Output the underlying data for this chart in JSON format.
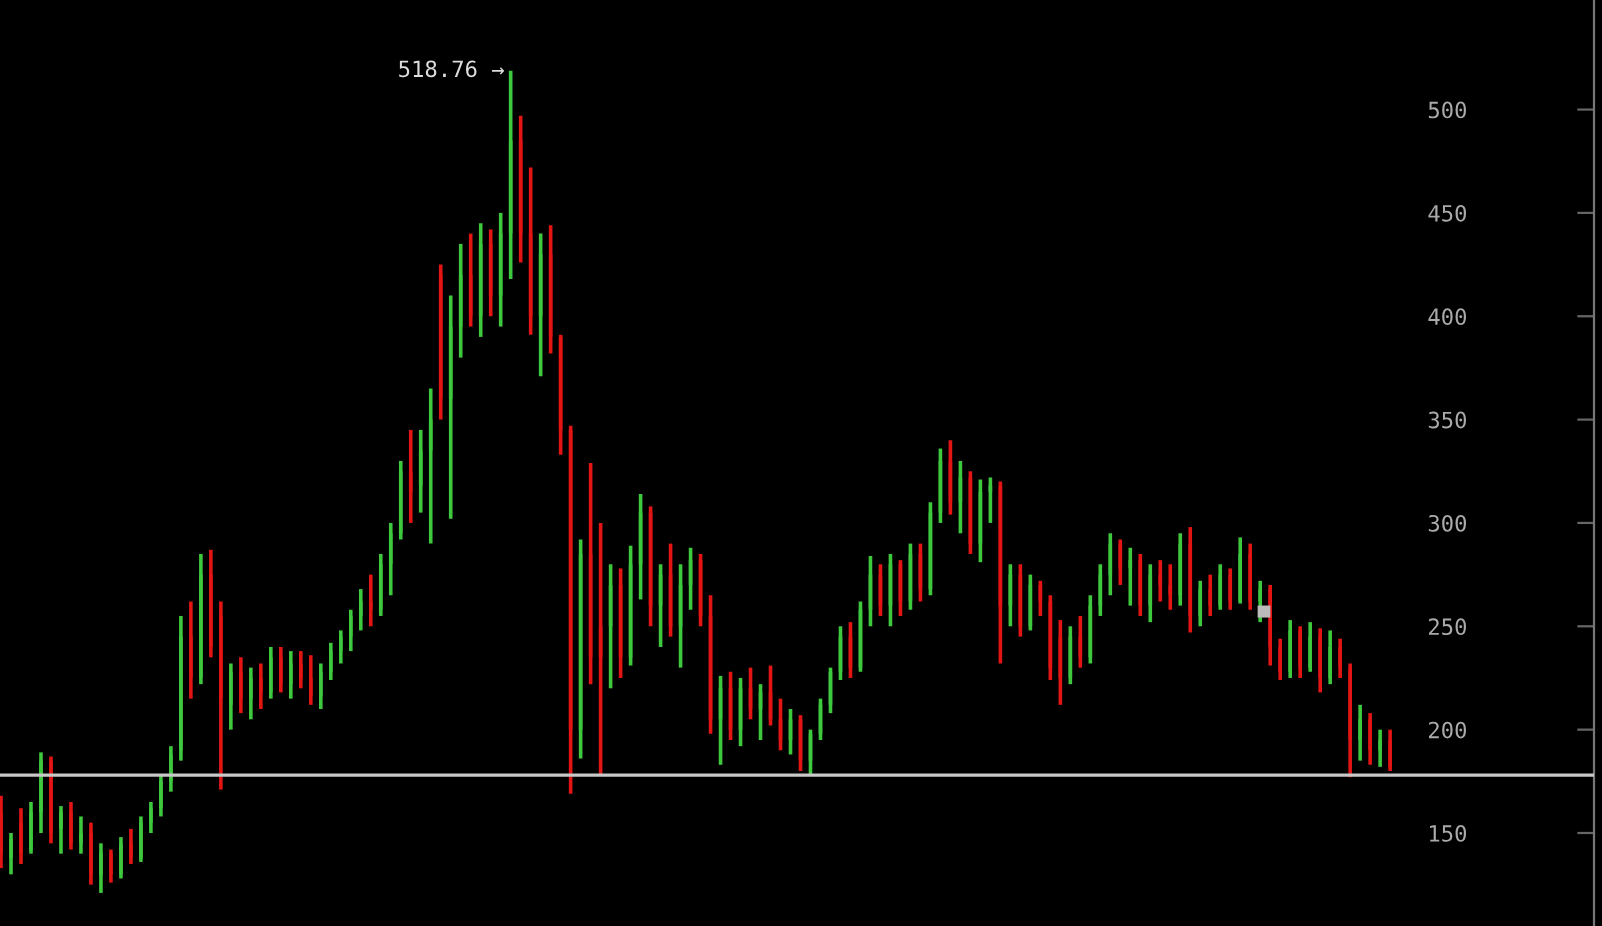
{
  "chart_data": {
    "type": "candlestick",
    "categories": [
      null,
      null,
      null,
      null,
      null,
      null,
      null,
      null,
      null,
      null,
      null,
      null,
      null,
      null,
      null,
      null,
      null,
      null,
      null,
      null,
      null,
      null,
      null,
      null,
      null,
      null,
      null,
      null,
      null,
      null,
      null,
      null,
      null,
      null,
      null,
      null,
      null,
      null,
      null,
      null,
      null,
      null,
      null,
      null,
      null,
      null,
      null,
      null,
      null,
      null,
      null,
      null,
      null,
      null,
      null,
      null,
      null,
      null,
      null,
      null,
      null,
      null,
      null,
      null,
      null,
      null,
      null,
      null,
      null,
      null,
      null,
      null,
      null,
      null,
      null,
      null,
      null,
      null,
      null,
      null,
      null,
      null,
      null,
      null,
      null,
      null,
      null,
      null,
      null,
      null,
      null,
      null,
      null,
      null,
      null,
      null,
      null,
      null,
      null,
      null,
      null,
      null,
      null,
      null,
      null,
      null,
      null,
      null,
      null,
      null,
      null,
      null,
      null,
      null,
      null,
      null,
      null,
      null,
      null,
      null,
      null,
      null,
      null,
      null,
      null,
      null,
      null,
      null,
      null,
      null,
      null,
      null,
      null,
      null,
      null,
      null,
      null,
      null,
      null,
      null
    ],
    "ohlc": [
      [
        160,
        168,
        133,
        140
      ],
      [
        138,
        150,
        130,
        147
      ],
      [
        155,
        162,
        135,
        140
      ],
      [
        142,
        165,
        140,
        160
      ],
      [
        160,
        189,
        150,
        185
      ],
      [
        185,
        187,
        145,
        150
      ],
      [
        152,
        163,
        140,
        160
      ],
      [
        160,
        165,
        142,
        145
      ],
      [
        145,
        158,
        140,
        150
      ],
      [
        150,
        155,
        125,
        130
      ],
      [
        130,
        145,
        121,
        140
      ],
      [
        140,
        142,
        126,
        130
      ],
      [
        130,
        148,
        128,
        145
      ],
      [
        145,
        152,
        135,
        138
      ],
      [
        138,
        158,
        136,
        155
      ],
      [
        155,
        165,
        150,
        162
      ],
      [
        162,
        178,
        158,
        175
      ],
      [
        175,
        192,
        170,
        188
      ],
      [
        190,
        255,
        185,
        245
      ],
      [
        245,
        262,
        215,
        225
      ],
      [
        225,
        285,
        222,
        275
      ],
      [
        275,
        287,
        235,
        240
      ],
      [
        255,
        262,
        171,
        215
      ],
      [
        212,
        232,
        200,
        228
      ],
      [
        228,
        235,
        208,
        215
      ],
      [
        215,
        230,
        205,
        225
      ],
      [
        225,
        232,
        210,
        218
      ],
      [
        218,
        240,
        215,
        235
      ],
      [
        235,
        240,
        218,
        222
      ],
      [
        222,
        238,
        215,
        232
      ],
      [
        232,
        238,
        220,
        225
      ],
      [
        225,
        236,
        212,
        216
      ],
      [
        216,
        232,
        210,
        228
      ],
      [
        228,
        242,
        224,
        238
      ],
      [
        238,
        248,
        232,
        245
      ],
      [
        245,
        258,
        238,
        255
      ],
      [
        255,
        268,
        248,
        262
      ],
      [
        262,
        275,
        250,
        258
      ],
      [
        258,
        285,
        255,
        280
      ],
      [
        280,
        300,
        265,
        295
      ],
      [
        295,
        330,
        292,
        325
      ],
      [
        325,
        345,
        300,
        315
      ],
      [
        318,
        345,
        305,
        335
      ],
      [
        335,
        365,
        290,
        350
      ],
      [
        420,
        425,
        350,
        360
      ],
      [
        360,
        410,
        302,
        395
      ],
      [
        395,
        435,
        380,
        420
      ],
      [
        420,
        440,
        395,
        400
      ],
      [
        400,
        445,
        390,
        435
      ],
      [
        435,
        442,
        400,
        410
      ],
      [
        410,
        450,
        395,
        440
      ],
      [
        440,
        518.76,
        418,
        485
      ],
      [
        485,
        497,
        426,
        440
      ],
      [
        440,
        472,
        391,
        400
      ],
      [
        400,
        440,
        371,
        430
      ],
      [
        430,
        444,
        382,
        390
      ],
      [
        390,
        391,
        333,
        345
      ],
      [
        345,
        347,
        169,
        200
      ],
      [
        200,
        292,
        186,
        285
      ],
      [
        285,
        329,
        222,
        235
      ],
      [
        250,
        300,
        178,
        235
      ],
      [
        250,
        280,
        220,
        270
      ],
      [
        270,
        278,
        225,
        235
      ],
      [
        235,
        289,
        231,
        280
      ],
      [
        280,
        314,
        263,
        305
      ],
      [
        305,
        308,
        250,
        260
      ],
      [
        260,
        280,
        240,
        275
      ],
      [
        275,
        290,
        245,
        250
      ],
      [
        250,
        280,
        230,
        270
      ],
      [
        270,
        288,
        258,
        282
      ],
      [
        282,
        285,
        250,
        255
      ],
      [
        255,
        265,
        198,
        205
      ],
      [
        205,
        226,
        183,
        220
      ],
      [
        220,
        228,
        195,
        200
      ],
      [
        200,
        225,
        192,
        220
      ],
      [
        220,
        230,
        205,
        210
      ],
      [
        210,
        222,
        195,
        218
      ],
      [
        218,
        231,
        202,
        205
      ],
      [
        205,
        215,
        190,
        195
      ],
      [
        195,
        210,
        188,
        205
      ],
      [
        205,
        207,
        180,
        185
      ],
      [
        185,
        200,
        178,
        198
      ],
      [
        198,
        215,
        195,
        212
      ],
      [
        212,
        230,
        208,
        228
      ],
      [
        228,
        250,
        224,
        245
      ],
      [
        245,
        252,
        225,
        230
      ],
      [
        230,
        262,
        228,
        258
      ],
      [
        258,
        284,
        250,
        275
      ],
      [
        275,
        280,
        255,
        260
      ],
      [
        260,
        285,
        250,
        280
      ],
      [
        280,
        282,
        255,
        262
      ],
      [
        262,
        290,
        258,
        285
      ],
      [
        285,
        290,
        262,
        268
      ],
      [
        268,
        310,
        265,
        305
      ],
      [
        305,
        336,
        300,
        330
      ],
      [
        330,
        340,
        304,
        310
      ],
      [
        310,
        330,
        295,
        322
      ],
      [
        322,
        325,
        285,
        290
      ],
      [
        290,
        321,
        281,
        315
      ],
      [
        315,
        322,
        300,
        318
      ],
      [
        318,
        320,
        232,
        260
      ],
      [
        260,
        280,
        250,
        275
      ],
      [
        275,
        280,
        245,
        250
      ],
      [
        250,
        275,
        248,
        270
      ],
      [
        270,
        272,
        255,
        262
      ],
      [
        262,
        265,
        224,
        230
      ],
      [
        245,
        253,
        212,
        225
      ],
      [
        225,
        250,
        222,
        245
      ],
      [
        245,
        255,
        230,
        235
      ],
      [
        235,
        265,
        232,
        260
      ],
      [
        260,
        280,
        255,
        275
      ],
      [
        275,
        295,
        265,
        290
      ],
      [
        290,
        292,
        270,
        278
      ],
      [
        278,
        288,
        260,
        282
      ],
      [
        282,
        285,
        255,
        260
      ],
      [
        260,
        280,
        252,
        275
      ],
      [
        275,
        282,
        262,
        270
      ],
      [
        270,
        280,
        258,
        265
      ],
      [
        265,
        295,
        260,
        290
      ],
      [
        290,
        298,
        247,
        255
      ],
      [
        255,
        272,
        250,
        268
      ],
      [
        268,
        275,
        255,
        260
      ],
      [
        260,
        280,
        258,
        275
      ],
      [
        275,
        278,
        258,
        262
      ],
      [
        262,
        293,
        261,
        285
      ],
      [
        285,
        290,
        258,
        262
      ],
      [
        262,
        272,
        252,
        268
      ],
      [
        268,
        270,
        231,
        240
      ],
      [
        240,
        244,
        224,
        228
      ],
      [
        228,
        253,
        225,
        248
      ],
      [
        248,
        250,
        225,
        230
      ],
      [
        230,
        252,
        228,
        245
      ],
      [
        245,
        249,
        218,
        225
      ],
      [
        225,
        248,
        222,
        240
      ],
      [
        240,
        244,
        225,
        230
      ],
      [
        230,
        232,
        177,
        195
      ],
      [
        195,
        212,
        185,
        205
      ],
      [
        205,
        208,
        183,
        190
      ],
      [
        190,
        200,
        182,
        195
      ],
      [
        195,
        200,
        180,
        182
      ]
    ],
    "colors": [
      "#e21414",
      "#3ec83e",
      "#e21414",
      "#3ec83e",
      "#3ec83e",
      "#e21414",
      "#3ec83e",
      "#e21414",
      "#3ec83e",
      "#e21414",
      "#3ec83e",
      "#e21414",
      "#3ec83e",
      "#e21414",
      "#3ec83e",
      "#3ec83e",
      "#3ec83e",
      "#3ec83e",
      "#3ec83e",
      "#e21414",
      "#3ec83e",
      "#e21414",
      "#e21414",
      "#3ec83e",
      "#e21414",
      "#3ec83e",
      "#e21414",
      "#3ec83e",
      "#e21414",
      "#3ec83e",
      "#e21414",
      "#e21414",
      "#3ec83e",
      "#3ec83e",
      "#3ec83e",
      "#3ec83e",
      "#3ec83e",
      "#e21414",
      "#3ec83e",
      "#3ec83e",
      "#3ec83e",
      "#e21414",
      "#3ec83e",
      "#3ec83e",
      "#e21414",
      "#3ec83e",
      "#3ec83e",
      "#e21414",
      "#3ec83e",
      "#e21414",
      "#3ec83e",
      "#3ec83e",
      "#e21414",
      "#e21414",
      "#3ec83e",
      "#e21414",
      "#e21414",
      "#e21414",
      "#3ec83e",
      "#e21414",
      "#e21414",
      "#3ec83e",
      "#e21414",
      "#3ec83e",
      "#3ec83e",
      "#e21414",
      "#3ec83e",
      "#e21414",
      "#3ec83e",
      "#3ec83e",
      "#e21414",
      "#e21414",
      "#3ec83e",
      "#e21414",
      "#3ec83e",
      "#e21414",
      "#3ec83e",
      "#e21414",
      "#e21414",
      "#3ec83e",
      "#e21414",
      "#3ec83e",
      "#3ec83e",
      "#3ec83e",
      "#3ec83e",
      "#e21414",
      "#3ec83e",
      "#3ec83e",
      "#e21414",
      "#3ec83e",
      "#e21414",
      "#3ec83e",
      "#e21414",
      "#3ec83e",
      "#3ec83e",
      "#e21414",
      "#3ec83e",
      "#e21414",
      "#3ec83e",
      "#3ec83e",
      "#e21414",
      "#3ec83e",
      "#e21414",
      "#3ec83e",
      "#e21414",
      "#e21414",
      "#e21414",
      "#3ec83e",
      "#e21414",
      "#3ec83e",
      "#3ec83e",
      "#3ec83e",
      "#e21414",
      "#3ec83e",
      "#e21414",
      "#3ec83e",
      "#e21414",
      "#e21414",
      "#3ec83e",
      "#e21414",
      "#3ec83e",
      "#e21414",
      "#3ec83e",
      "#e21414",
      "#3ec83e",
      "#e21414",
      "#3ec83e",
      "#e21414",
      "#e21414",
      "#3ec83e",
      "#e21414",
      "#3ec83e",
      "#e21414",
      "#3ec83e",
      "#e21414",
      "#e21414",
      "#3ec83e",
      "#e21414",
      "#3ec83e",
      "#e21414"
    ],
    "ylim": [
      105,
      553
    ],
    "yticks": [
      150,
      200,
      250,
      300,
      350,
      400,
      450,
      500
    ],
    "tick_labels": "y",
    "grid": false,
    "legend": false,
    "ref_lines": [
      {
        "axis": "y",
        "value": 178,
        "color": "#c8c8c8"
      }
    ],
    "annotations": [
      "518.76 →"
    ]
  }
}
